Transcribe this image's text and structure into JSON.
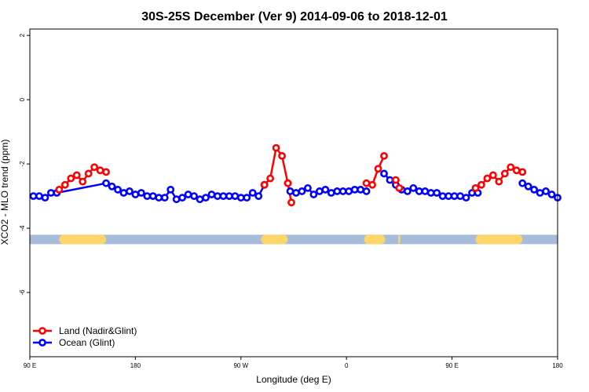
{
  "chart_data": {
    "type": "line",
    "title": "30S-25S December (Ver 9)   2014-09-06 to 2018-12-01",
    "xlabel": "Longitude (deg E)",
    "ylabel": "XCO2 - MLO trend (ppm)",
    "xlim": [
      90,
      540
    ],
    "ylim": [
      -8,
      2.2
    ],
    "x_ticks": [
      {
        "value": 90,
        "label": "90 E"
      },
      {
        "value": 180,
        "label": "180"
      },
      {
        "value": 270,
        "label": "90 W"
      },
      {
        "value": 360,
        "label": "0"
      },
      {
        "value": 450,
        "label": "90 E"
      },
      {
        "value": 540,
        "label": "180"
      }
    ],
    "y_ticks": [
      {
        "value": 2,
        "label": "2"
      },
      {
        "value": 0,
        "label": "0"
      },
      {
        "value": -2,
        "label": "-2"
      },
      {
        "value": -4,
        "label": "-4"
      },
      {
        "value": -6,
        "label": "-6"
      }
    ],
    "colors": {
      "land": "#ff0000",
      "ocean": "#0000ff",
      "band_ocean": "#a7bcd9",
      "band_land": "#fdd66a"
    },
    "series": [
      {
        "name": "Land (Nadir&Glint)",
        "color": "#ff0000",
        "segments": [
          {
            "x": [
              115,
              120,
              125,
              130,
              135,
              140,
              145,
              150,
              155
            ],
            "y": [
              -2.8,
              -2.65,
              -2.45,
              -2.35,
              -2.55,
              -2.3,
              -2.1,
              -2.2,
              -2.25
            ]
          },
          {
            "x": [
              290,
              295,
              300,
              305,
              310
            ],
            "y": [
              -2.65,
              -2.45,
              -1.5,
              -1.75,
              -2.6
            ]
          },
          {
            "x": [
              310,
              313
            ],
            "y": [
              -2.6,
              -3.2
            ]
          },
          {
            "x": [
              377,
              382,
              387,
              392
            ],
            "y": [
              -2.6,
              -2.65,
              -2.15,
              -1.75
            ]
          },
          {
            "x": [
              402,
              405
            ],
            "y": [
              -2.5,
              -2.75
            ]
          },
          {
            "x": [
              470,
              475,
              480,
              485,
              490,
              495,
              500,
              505,
              510
            ],
            "y": [
              -2.75,
              -2.65,
              -2.45,
              -2.35,
              -2.55,
              -2.3,
              -2.1,
              -2.2,
              -2.25
            ]
          }
        ]
      },
      {
        "name": "Ocean (Glint)",
        "color": "#0000ff",
        "segments": [
          {
            "x": [
              93,
              98,
              103,
              108,
              113,
              155,
              160,
              165,
              170,
              175,
              180,
              185,
              190,
              195,
              200,
              205,
              210,
              215,
              220,
              225,
              230,
              235,
              240,
              245,
              250,
              255,
              260,
              265,
              270,
              275,
              280,
              285,
              290
            ],
            "y": [
              -3.0,
              -3.0,
              -3.05,
              -2.9,
              -2.9,
              -2.6,
              -2.7,
              -2.8,
              -2.9,
              -2.85,
              -2.95,
              -2.9,
              -3.0,
              -3.0,
              -3.05,
              -3.05,
              -2.8,
              -3.1,
              -3.05,
              -2.95,
              -3.0,
              -3.1,
              -3.05,
              -2.95,
              -3.0,
              -3.0,
              -3.0,
              -3.0,
              -3.05,
              -3.05,
              -2.9,
              -3.0,
              -2.65
            ]
          },
          {
            "x": [
              312,
              317,
              322,
              327,
              332,
              337,
              342,
              347,
              352,
              357,
              362,
              367,
              372,
              377
            ],
            "y": [
              -2.85,
              -2.9,
              -2.85,
              -2.75,
              -2.95,
              -2.85,
              -2.8,
              -2.9,
              -2.85,
              -2.85,
              -2.85,
              -2.8,
              -2.8,
              -2.85
            ]
          },
          {
            "x": [
              392,
              397,
              402,
              407,
              412,
              417,
              422,
              427,
              432,
              437,
              442,
              447,
              452,
              457,
              462,
              467,
              472
            ],
            "y": [
              -2.3,
              -2.5,
              -2.65,
              -2.8,
              -2.85,
              -2.75,
              -2.85,
              -2.85,
              -2.9,
              -2.9,
              -3.0,
              -3.0,
              -3.0,
              -3.0,
              -3.05,
              -2.9,
              -2.9
            ]
          },
          {
            "x": [
              510,
              515,
              520,
              525,
              530,
              535,
              540
            ],
            "y": [
              -2.6,
              -2.7,
              -2.8,
              -2.9,
              -2.85,
              -2.95,
              -3.05
            ]
          }
        ]
      }
    ],
    "band": {
      "y": -4.35,
      "land_ranges": [
        [
          115,
          155
        ],
        [
          287,
          310
        ],
        [
          375,
          393
        ],
        [
          404,
          406
        ],
        [
          470,
          510
        ]
      ]
    },
    "legend": {
      "position": "bottom-left",
      "entries": [
        {
          "label": "Land (Nadir&Glint)",
          "color": "#ff0000"
        },
        {
          "label": "Ocean (Glint)",
          "color": "#0000ff"
        }
      ]
    }
  }
}
